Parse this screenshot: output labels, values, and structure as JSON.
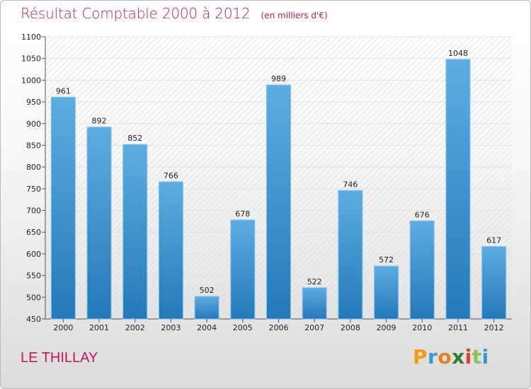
{
  "header": {
    "title": "Résultat Comptable 2000 à 2012",
    "unit": "(en milliers d'€)"
  },
  "footer": {
    "commune": "LE THILLAY",
    "logo_letters": [
      "P",
      "r",
      "o",
      "x",
      "i",
      "t",
      "i"
    ],
    "logo_colors": [
      "#f39c12",
      "#3498db",
      "#e67e22",
      "#2e7d32",
      "#e53935",
      "#8bc34a",
      "#3498db"
    ]
  },
  "colors": {
    "title": "#c2185b",
    "bar_light": "#5dade2",
    "bar_dark": "#2479b8"
  },
  "chart_data": {
    "type": "bar",
    "title": "Résultat Comptable 2000 à 2012",
    "xlabel": "",
    "ylabel": "",
    "ylim": [
      450,
      1100
    ],
    "yticks": [
      450,
      500,
      550,
      600,
      650,
      700,
      750,
      800,
      850,
      900,
      950,
      1000,
      1050,
      1100
    ],
    "grid": true,
    "categories": [
      "2000",
      "2001",
      "2002",
      "2003",
      "2004",
      "2005",
      "2006",
      "2007",
      "2008",
      "2009",
      "2010",
      "2011",
      "2012"
    ],
    "values": [
      961,
      892,
      852,
      766,
      502,
      678,
      989,
      522,
      746,
      572,
      676,
      1048,
      617
    ]
  }
}
